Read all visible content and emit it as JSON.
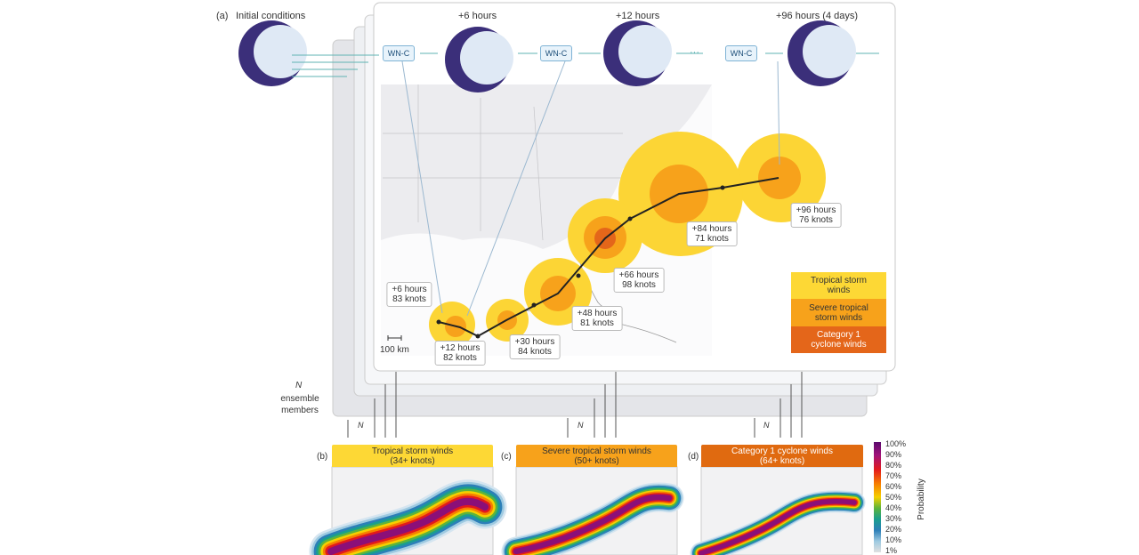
{
  "panel_a": {
    "label": "(a)",
    "initial": "Initial conditions",
    "steps": [
      "+6 hours",
      "+12 hours",
      "+96 hours (4 days)"
    ],
    "model": [
      "WN-C",
      "WN-C",
      "WN-C"
    ],
    "ellipsis": "···"
  },
  "track": [
    {
      "time": "+6 hours",
      "speed": "83 knots"
    },
    {
      "time": "+12 hours",
      "speed": "82 knots"
    },
    {
      "time": "+30 hours",
      "speed": "84 knots"
    },
    {
      "time": "+48 hours",
      "speed": "81 knots"
    },
    {
      "time": "+66 hours",
      "speed": "98 knots"
    },
    {
      "time": "+84 hours",
      "speed": "71 knots"
    },
    {
      "time": "+96 hours",
      "speed": "76 knots"
    }
  ],
  "scale": "100 km",
  "legend": [
    "Tropical storm winds",
    "Severe tropical storm winds",
    "Category 1 cyclone winds"
  ],
  "ensemble": {
    "n": "N",
    "label": "ensemble members"
  },
  "n_marks": [
    "N",
    "N",
    "N"
  ],
  "panels": [
    {
      "label": "(b)",
      "title": "Tropical storm winds",
      "threshold": "(34+ knots)"
    },
    {
      "label": "(c)",
      "title": "Severe tropical storm winds",
      "threshold": "(50+ knots)"
    },
    {
      "label": "(d)",
      "title": "Category 1 cyclone winds",
      "threshold": "(64+ knots)"
    }
  ],
  "colorbar": {
    "ticks": [
      "100%",
      "90%",
      "80%",
      "70%",
      "60%",
      "50%",
      "40%",
      "30%",
      "20%",
      "10%",
      "1%"
    ],
    "title": "Probability"
  }
}
